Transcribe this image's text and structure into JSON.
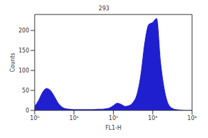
{
  "chart_data": {
    "type": "area",
    "title": "293",
    "x_label": "FL1-H",
    "y_label": "Counts",
    "log": "x",
    "color": "#1f1fd0",
    "xlim": [
      1,
      10000
    ],
    "xticks": [
      {
        "value": 1,
        "label": "10⁰"
      },
      {
        "value": 10,
        "label": "10¹"
      },
      {
        "value": 100,
        "label": "10²"
      },
      {
        "value": 1000,
        "label": "10³"
      },
      {
        "value": 10000,
        "label": "10⁴"
      }
    ],
    "ylim": [
      0,
      240
    ],
    "yticks": [
      0,
      50,
      100,
      150,
      200
    ],
    "x": [
      1,
      1.26,
      1.58,
      2,
      2.51,
      3.16,
      3.98,
      5.01,
      6.31,
      7.94,
      10,
      12.6,
      15.8,
      20,
      25.1,
      31.6,
      39.8,
      50.1,
      63.1,
      79.4,
      100,
      126,
      158,
      200,
      251,
      316,
      398,
      501,
      631,
      794,
      1000,
      1259,
      1585,
      1995,
      2512,
      3162,
      3981,
      5012,
      6310,
      7943,
      10000
    ],
    "values": [
      10,
      25,
      45,
      55,
      50,
      35,
      18,
      8,
      4,
      3,
      2,
      2,
      2,
      2,
      2,
      2,
      3,
      3,
      4,
      6,
      12,
      18,
      15,
      10,
      12,
      20,
      40,
      90,
      170,
      215,
      220,
      230,
      120,
      50,
      15,
      5,
      2,
      1,
      0,
      0,
      0
    ]
  }
}
